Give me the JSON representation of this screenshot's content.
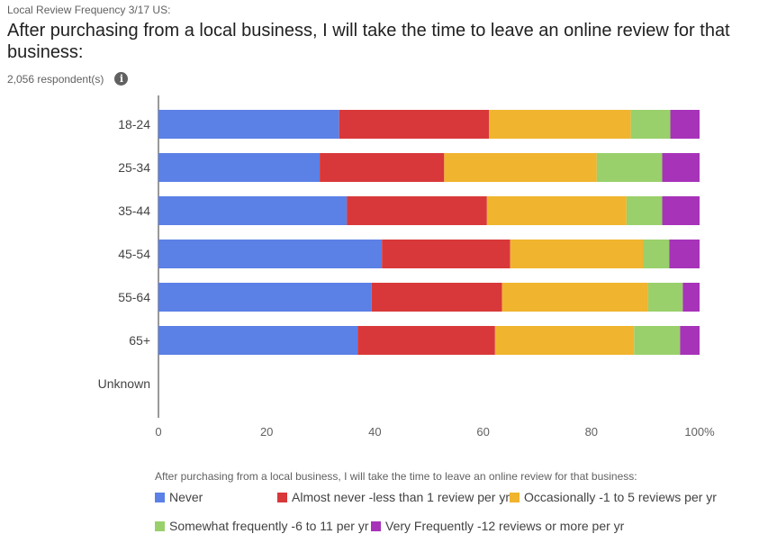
{
  "header": {
    "pretitle": "Local Review Frequency 3/17 US:",
    "title": "After purchasing from a local business, I will take the time to leave an online review for that business:",
    "respondents": "2,056 respondent(s)",
    "info_icon": "i"
  },
  "chart_data": {
    "type": "bar",
    "orientation": "horizontal",
    "stacked": true,
    "percent_stacked": true,
    "categories": [
      "18-24",
      "25-34",
      "35-44",
      "45-54",
      "55-64",
      "65+",
      "Unknown"
    ],
    "series": [
      {
        "name": "Never",
        "color": "#5b80e6",
        "values": [
          33.4,
          29.8,
          34.8,
          41.3,
          39.4,
          36.8,
          null
        ]
      },
      {
        "name": "Almost never -less than 1 review per yr",
        "color": "#d8383a",
        "values": [
          27.7,
          23.0,
          25.9,
          23.7,
          24.1,
          25.4,
          null
        ]
      },
      {
        "name": "Occasionally -1 to 5 reviews per yr",
        "color": "#f0b42e",
        "values": [
          26.2,
          28.2,
          25.8,
          24.6,
          27.0,
          25.7,
          null
        ]
      },
      {
        "name": "Somewhat frequently -6 to 11 per yr",
        "color": "#99d06b",
        "values": [
          7.3,
          12.1,
          6.6,
          4.8,
          6.4,
          8.5,
          null
        ]
      },
      {
        "name": "Very Frequently -12 reviews or more per yr",
        "color": "#a733b9",
        "values": [
          5.4,
          6.9,
          6.9,
          5.6,
          3.1,
          3.6,
          null
        ]
      }
    ],
    "xlim": [
      0,
      100
    ],
    "xticks": [
      "0",
      "20",
      "40",
      "60",
      "80",
      "100%"
    ],
    "grid": false,
    "legend_title": "After purchasing from a local business, I will take the time to leave an online review for that business:",
    "legend_position": "bottom"
  }
}
